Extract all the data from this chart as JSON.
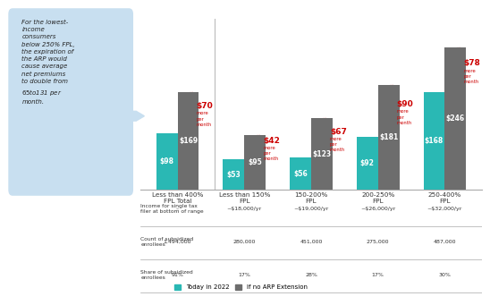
{
  "categories": [
    "Less than 400%\nFPL Total",
    "Less than 150%\nFPL",
    "150-200%\nFPL",
    "200-250%\nFPL",
    "250-400%\nFPL"
  ],
  "today_values": [
    98,
    53,
    56,
    92,
    168
  ],
  "no_arp_values": [
    169,
    95,
    123,
    181,
    246
  ],
  "increases": [
    "$70",
    "$42",
    "$67",
    "$90",
    "$78"
  ],
  "today_color": "#2ab8b4",
  "no_arp_color": "#6d6d6d",
  "increase_color": "#cc0000",
  "bar_width": 0.32,
  "table_rows": [
    [
      "Income for single tax\nfiler at bottom of range",
      "–",
      "~$18,000/yr",
      "~$19,000/yr",
      "~$26,000/yr",
      "~$32,000/yr"
    ],
    [
      "Count of subsidized\nenrollees",
      "1,494,000",
      "280,000",
      "451,000",
      "275,000",
      "487,000"
    ],
    [
      "Share of subsidized\nenrollees",
      "91%",
      "17%",
      "28%",
      "17%",
      "30%"
    ]
  ],
  "legend_today": "Today in 2022",
  "legend_no_arp": "If no ARP Extension",
  "annotation_text": "For the lowest-\nincome\nconsumers\nbelow 250% FPL,\nthe expiration of\nthe ARP would\ncause average\nnet premiums\nto double from\n$65 to $131 per\nmonth.",
  "annotation_bg": "#c8dff0",
  "separator_color": "#bbbbbb"
}
